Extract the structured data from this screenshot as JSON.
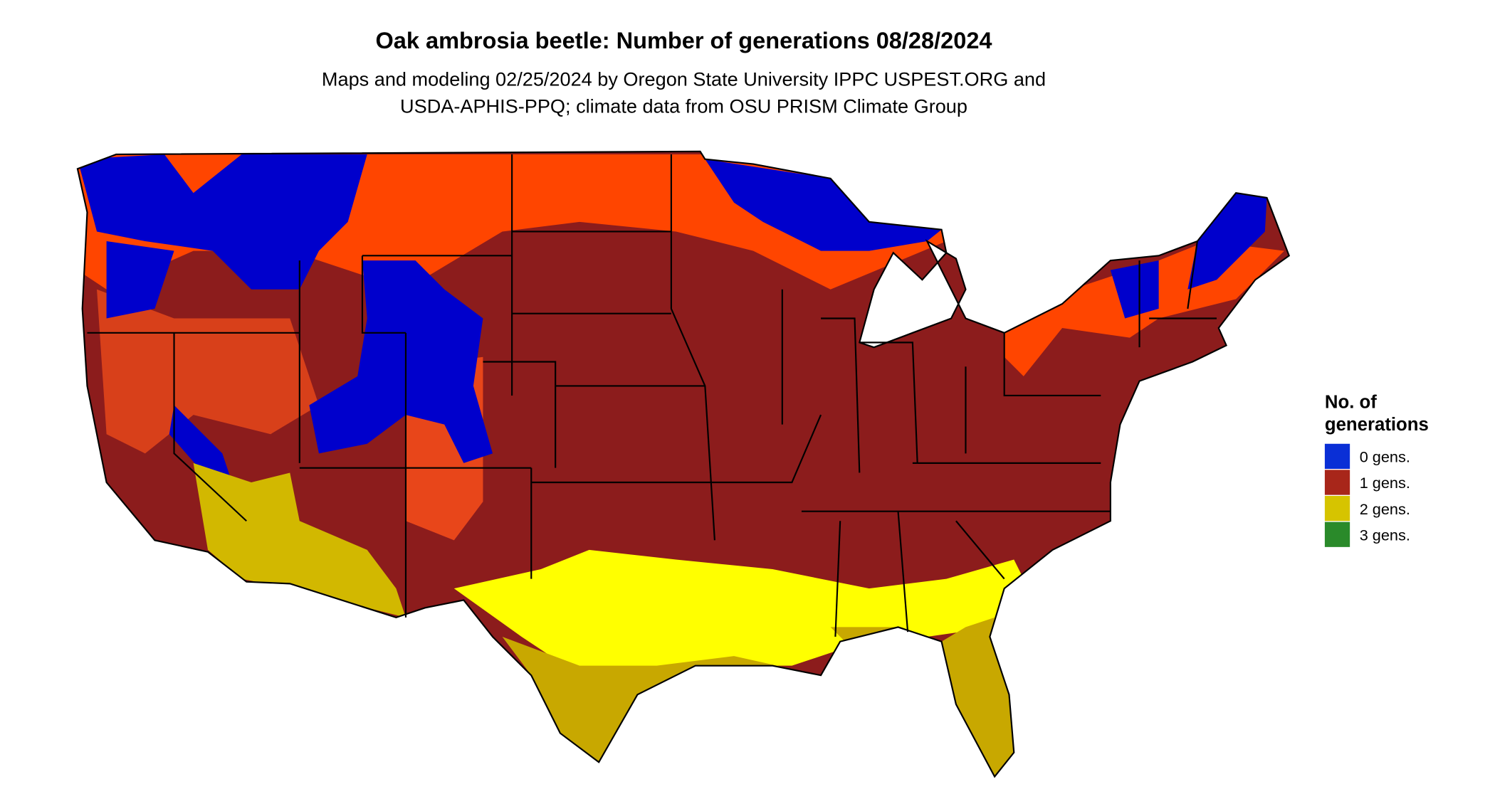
{
  "title": "Oak ambrosia beetle: Number of generations 08/28/2024",
  "subtitle": [
    "Maps and modeling 02/25/2024 by Oregon State University IPPC USPEST.ORG and",
    "USDA-APHIS-PPQ; climate data from OSU PRISM Climate Group"
  ],
  "legend": {
    "title": [
      "No. of",
      "generations"
    ],
    "items": [
      {
        "label": "0 gens.",
        "color": "#0a2fd6"
      },
      {
        "label": "1 gens.",
        "color": "#a8261a"
      },
      {
        "label": "2 gens.",
        "color": "#d6c400"
      },
      {
        "label": "3 gens.",
        "color": "#2a8a2a"
      }
    ]
  }
}
